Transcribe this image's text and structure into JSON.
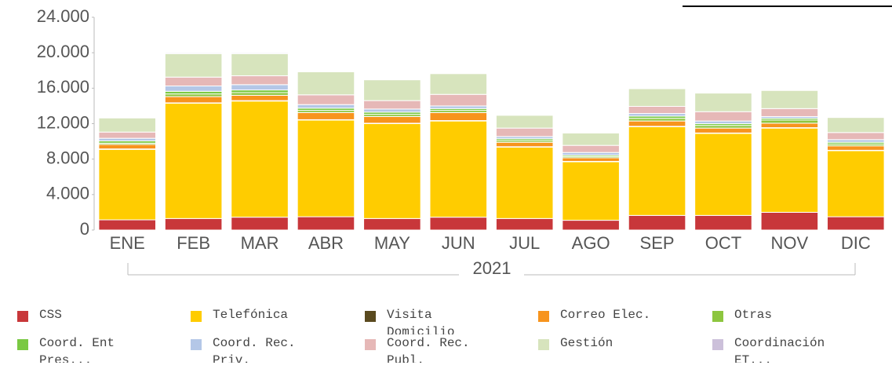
{
  "chart_data": {
    "type": "stacked_bar",
    "categories": [
      "ENE",
      "FEB",
      "MAR",
      "ABR",
      "MAY",
      "JUN",
      "JUL",
      "AGO",
      "SEP",
      "OCT",
      "NOV",
      "DIC"
    ],
    "x_group_label": "2021",
    "ylim": [
      0,
      24000
    ],
    "yticks": [
      0,
      {
        "value": 4000,
        "label": "4.000"
      },
      {
        "value": 8000,
        "label": "8.000"
      },
      {
        "value": 12000,
        "label": "12.000"
      },
      {
        "value": 16000,
        "label": "16.000"
      },
      {
        "value": 20000,
        "label": "20.000"
      },
      {
        "value": 24000,
        "label": "24.000"
      }
    ],
    "series": [
      {
        "name": "CSS",
        "color": "#c8373a",
        "values": [
          1150,
          1300,
          1450,
          1500,
          1300,
          1450,
          1300,
          1100,
          1650,
          1650,
          2000,
          1500
        ]
      },
      {
        "name": "Telefónica",
        "color": "#ffcc00",
        "values": [
          7950,
          13000,
          13100,
          10900,
          10700,
          10850,
          8050,
          6600,
          10000,
          9250,
          9500,
          7450
        ]
      },
      {
        "name": "Visita Domicilio",
        "color": "#5a4a1f",
        "values": [
          50,
          50,
          50,
          50,
          50,
          50,
          50,
          50,
          50,
          50,
          50,
          50
        ]
      },
      {
        "name": "Correo Elec.",
        "color": "#f7941d",
        "values": [
          500,
          700,
          600,
          800,
          750,
          900,
          500,
          400,
          600,
          550,
          500,
          500
        ]
      },
      {
        "name": "Otras",
        "color": "#8dc63f",
        "values": [
          150,
          300,
          300,
          250,
          250,
          250,
          200,
          150,
          300,
          300,
          350,
          200
        ]
      },
      {
        "name": "Coord. Ent Pres...",
        "color": "#7ac943",
        "values": [
          250,
          300,
          300,
          250,
          250,
          200,
          200,
          150,
          250,
          200,
          200,
          200
        ]
      },
      {
        "name": "Coord. Rec. Priv.",
        "color": "#b4c7e7",
        "values": [
          300,
          600,
          600,
          400,
          350,
          300,
          250,
          300,
          300,
          300,
          200,
          300
        ]
      },
      {
        "name": "Coord. Rec. Publ.",
        "color": "#e6b8b7",
        "values": [
          700,
          1000,
          1000,
          1100,
          950,
          1300,
          950,
          800,
          800,
          1050,
          900,
          800
        ]
      },
      {
        "name": "Gestión",
        "color": "#d7e4bd",
        "values": [
          1600,
          2650,
          2500,
          2600,
          2350,
          2350,
          1450,
          1400,
          2000,
          2100,
          2050,
          1700
        ]
      },
      {
        "name": "Coordinación ET...",
        "color": "#ccc0da",
        "values": [
          50,
          100,
          100,
          50,
          50,
          50,
          50,
          50,
          50,
          50,
          50,
          50
        ]
      }
    ]
  }
}
